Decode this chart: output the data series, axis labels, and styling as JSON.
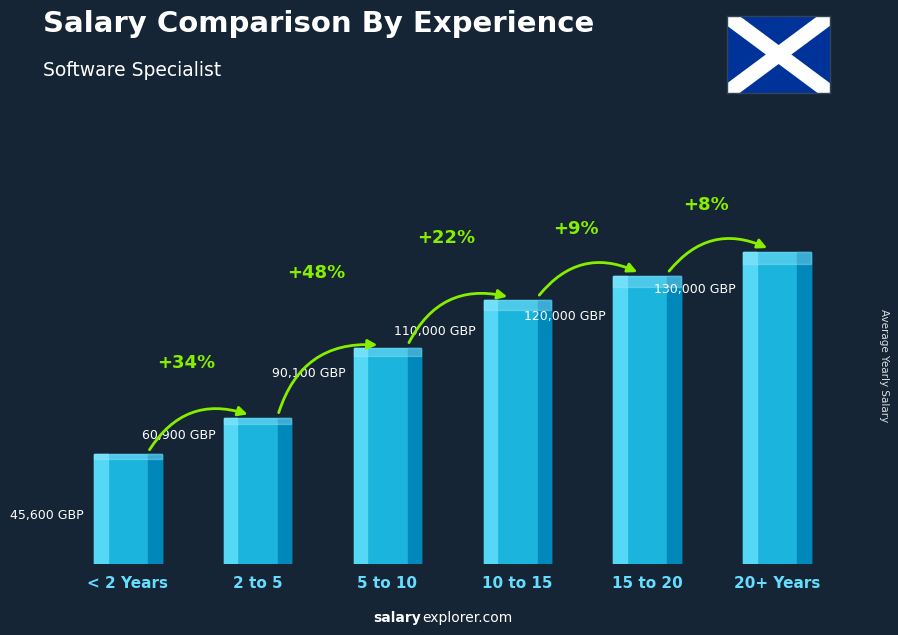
{
  "title": "Salary Comparison By Experience",
  "subtitle": "Software Specialist",
  "categories": [
    "< 2 Years",
    "2 to 5",
    "5 to 10",
    "10 to 15",
    "15 to 20",
    "20+ Years"
  ],
  "values": [
    45600,
    60900,
    90100,
    110000,
    120000,
    130000
  ],
  "salary_labels": [
    "45,600 GBP",
    "60,900 GBP",
    "90,100 GBP",
    "110,000 GBP",
    "120,000 GBP",
    "130,000 GBP"
  ],
  "pct_labels": [
    "+34%",
    "+48%",
    "+22%",
    "+9%",
    "+8%"
  ],
  "bar_color_main": "#00b8e6",
  "bar_color_light": "#55ddff",
  "bar_color_dark": "#0077aa",
  "background_color": "#152535",
  "text_color_white": "#ffffff",
  "text_color_cyan": "#66ddff",
  "text_color_green": "#88ee00",
  "ylabel": "Average Yearly Salary",
  "footer_salary": "salary",
  "footer_rest": "explorer.com",
  "ylim_max": 160000,
  "bar_width": 0.52,
  "flag_blue": "#003399"
}
